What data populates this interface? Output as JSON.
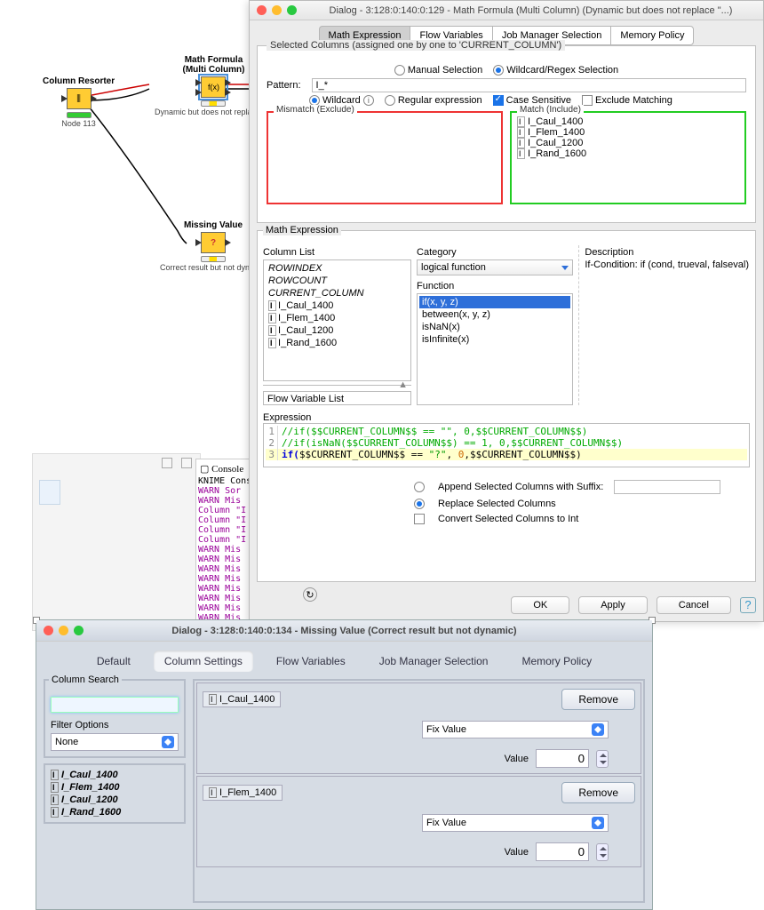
{
  "workflow": {
    "node1": {
      "title": "Column Resorter",
      "sub": "Node 113"
    },
    "node2": {
      "title": "Math Formula\n(Multi Column)",
      "sub": "Dynamic but does not replace \"?\""
    },
    "node3": {
      "title": "Missing Value",
      "sub": "Correct result but not dynamic"
    }
  },
  "dialog1": {
    "title": "Dialog - 3:128:0:140:0:129 - Math Formula (Multi Column) (Dynamic but does not replace \"...)",
    "tabs": [
      "Math Expression",
      "Flow Variables",
      "Job Manager Selection",
      "Memory Policy"
    ],
    "selColsLabel": "Selected Columns (assigned one by one to 'CURRENT_COLUMN')",
    "manualSel": "Manual Selection",
    "wildSel": "Wildcard/Regex Selection",
    "patternLabel": "Pattern:",
    "patternVal": "I_*",
    "wildcard": "Wildcard",
    "regex": "Regular expression",
    "caseSens": "Case Sensitive",
    "exclMatch": "Exclude Matching",
    "mismatch": "Mismatch (Exclude)",
    "match": "Match (Include)",
    "matches": [
      "I_Caul_1400",
      "I_Flem_1400",
      "I_Caul_1200",
      "I_Rand_1600"
    ],
    "mathExpr": "Math Expression",
    "colList": "Column List",
    "rowidx": "ROWINDEX",
    "rowcnt": "ROWCOUNT",
    "curcol": "CURRENT_COLUMN",
    "cols": [
      "I_Caul_1400",
      "I_Flem_1400",
      "I_Caul_1200",
      "I_Rand_1600"
    ],
    "flowVarList": "Flow Variable List",
    "category": "Category",
    "catVal": "logical function",
    "function": "Function",
    "funcs": [
      "if(x, y, z)",
      "between(x, y, z)",
      "isNaN(x)",
      "isInfinite(x)"
    ],
    "description": "Description",
    "descText": "If-Condition: if (cond, trueval, falseval)",
    "expression": "Expression",
    "expr1": "//if($$CURRENT_COLUMN$$ == \"\", 0,$$CURRENT_COLUMN$$)",
    "expr2": "//if(isNaN($$CURRENT_COLUMN$$) == 1, 0,$$CURRENT_COLUMN$$)",
    "expr3a": "if(",
    "expr3b": "$$CURRENT_COLUMN$$ == ",
    "expr3c": "\"?\"",
    "expr3d": ", ",
    "expr3e": "0",
    "expr3f": ",$$CURRENT_COLUMN$$)",
    "appendSuffix": "Append Selected Columns with Suffix:",
    "replaceCols": "Replace Selected Columns",
    "convertInt": "Convert Selected Columns to Int",
    "ok": "OK",
    "apply": "Apply",
    "cancel": "Cancel"
  },
  "console": {
    "title": "Console",
    "sub": "KNIME Cons",
    "lines": [
      "WARN  Sor",
      "WARN  Mis",
      "Column \"I",
      "Column \"I",
      "Column \"I",
      "Column \"I",
      "WARN  Mis",
      "WARN  Mis",
      "WARN  Mis",
      "WARN  Mis",
      "WARN  Mis",
      "WARN  Mis",
      "WARN  Mis",
      "WARN  Mis"
    ]
  },
  "dialog2": {
    "title": "Dialog - 3:128:0:140:0:134 - Missing Value (Correct result but not dynamic)",
    "tabs": [
      "Default",
      "Column Settings",
      "Flow Variables",
      "Job Manager Selection",
      "Memory Policy"
    ],
    "colSearch": "Column Search",
    "filterOpts": "Filter Options",
    "none": "None",
    "cols": [
      "I_Caul_1400",
      "I_Flem_1400",
      "I_Caul_1200",
      "I_Rand_1600"
    ],
    "remove": "Remove",
    "fixVal": "Fix Value",
    "value": "Value",
    "zero": "0",
    "c1": "I_Caul_1400",
    "c2": "I_Flem_1400"
  }
}
